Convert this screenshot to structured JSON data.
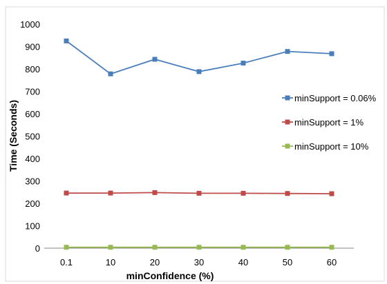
{
  "chart_data": {
    "type": "line",
    "title": "",
    "xlabel": "minConfidence (%)",
    "ylabel": "Time (Seconds)",
    "categories": [
      "0.1",
      "10",
      "20",
      "30",
      "40",
      "50",
      "60"
    ],
    "ylim": [
      0,
      1000
    ],
    "yticks": [
      0,
      100,
      200,
      300,
      400,
      500,
      600,
      700,
      800,
      900,
      1000
    ],
    "grid": false,
    "legend_position": "right",
    "series": [
      {
        "name": "minSupport = 0.06%",
        "color": "#4a7ebb",
        "marker": "square",
        "values": [
          925,
          778,
          843,
          788,
          826,
          878,
          868
        ]
      },
      {
        "name": "minSupport = 1%",
        "color": "#be4b48",
        "marker": "square",
        "values": [
          246,
          246,
          248,
          245,
          245,
          244,
          243
        ]
      },
      {
        "name": "minSupport = 10%",
        "color": "#98b954",
        "marker": "square",
        "values": [
          4,
          4,
          4,
          4,
          4,
          4,
          4
        ]
      }
    ]
  }
}
